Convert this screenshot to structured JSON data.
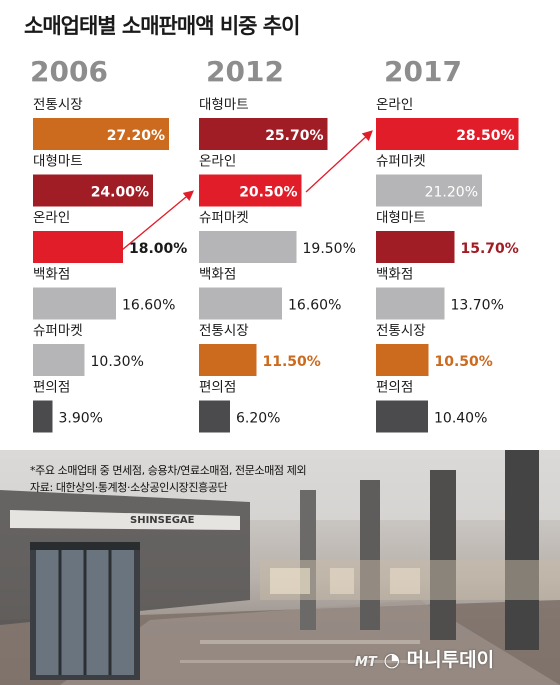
{
  "title": "소매업태별 소매판매액 비중 추이",
  "colors": {
    "orange": "#cc6a1e",
    "maroon": "#a01d26",
    "red": "#e11d2a",
    "gray": "#b5b5b7",
    "darkgray": "#4b4b4d",
    "year": "#8d8d8d"
  },
  "chart_data": [
    {
      "type": "bar",
      "title": "2006",
      "categories": [
        "전통시장",
        "대형마트",
        "온라인",
        "백화점",
        "슈퍼마켓",
        "편의점"
      ],
      "values": [
        27.2,
        24.0,
        18.0,
        16.6,
        10.3,
        3.9
      ],
      "value_labels": [
        "27.20%",
        "24.00%",
        "18.00%",
        "16.60%",
        "10.30%",
        "3.90%"
      ]
    },
    {
      "type": "bar",
      "title": "2012",
      "categories": [
        "대형마트",
        "온라인",
        "슈퍼마켓",
        "백화점",
        "전통시장",
        "편의점"
      ],
      "values": [
        25.7,
        20.5,
        19.5,
        16.6,
        11.5,
        6.2
      ],
      "value_labels": [
        "25.70%",
        "20.50%",
        "19.50%",
        "16.60%",
        "11.50%",
        "6.20%"
      ]
    },
    {
      "type": "bar",
      "title": "2017",
      "categories": [
        "온라인",
        "슈퍼마켓",
        "대형마트",
        "백화점",
        "전통시장",
        "편의점"
      ],
      "values": [
        28.5,
        21.2,
        15.7,
        13.7,
        10.5,
        10.4
      ],
      "value_labels": [
        "28.50%",
        "21.20%",
        "15.70%",
        "13.70%",
        "10.50%",
        "10.40%"
      ]
    }
  ],
  "notes": {
    "line1": "*주요 소매업태 중 면세점, 승용차/연료소매점, 전문소매점 제외",
    "line2": "자료: 대한상의·통계청·소상공인시장진흥공단"
  },
  "photo": {
    "sign_text": "SHINSEGAE"
  },
  "logo": {
    "mt": "MT",
    "name": "머니투데이"
  }
}
